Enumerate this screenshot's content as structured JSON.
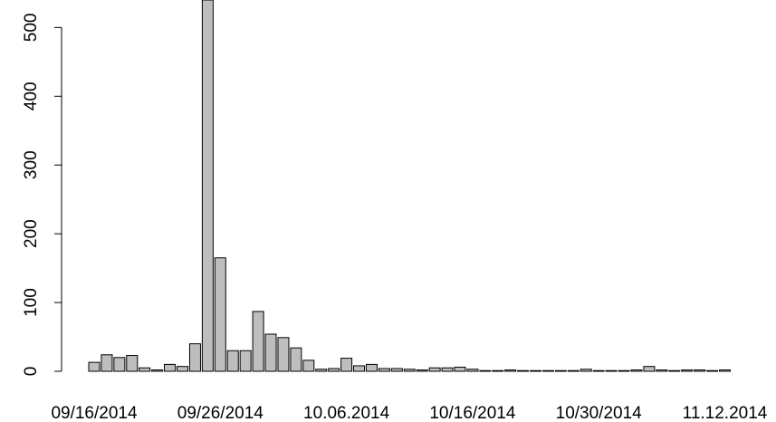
{
  "chart_data": {
    "type": "bar",
    "categories": [
      "09/16/2014",
      null,
      null,
      null,
      null,
      null,
      null,
      null,
      null,
      null,
      "09/26/2014",
      null,
      null,
      null,
      null,
      null,
      null,
      null,
      null,
      null,
      "10.06.2014",
      null,
      null,
      null,
      null,
      null,
      null,
      null,
      null,
      null,
      "10/16/2014",
      null,
      null,
      null,
      null,
      null,
      null,
      null,
      null,
      null,
      "10/30/2014",
      null,
      null,
      null,
      null,
      null,
      null,
      null,
      null,
      null,
      "11.12.2014"
    ],
    "values": [
      13,
      24,
      20,
      23,
      5,
      2,
      10,
      7,
      40,
      540,
      165,
      30,
      30,
      87,
      54,
      49,
      34,
      16,
      3,
      4,
      19,
      8,
      10,
      4,
      4,
      3,
      2,
      5,
      5,
      6,
      3,
      1,
      1,
      2,
      1,
      1,
      1,
      1,
      1,
      3,
      1,
      1,
      1,
      2,
      7,
      2,
      1,
      2,
      2,
      1,
      2
    ],
    "color": "#bebebe",
    "ylim": [
      0,
      540
    ],
    "yticks": [
      0,
      100,
      200,
      300,
      400,
      500
    ]
  }
}
